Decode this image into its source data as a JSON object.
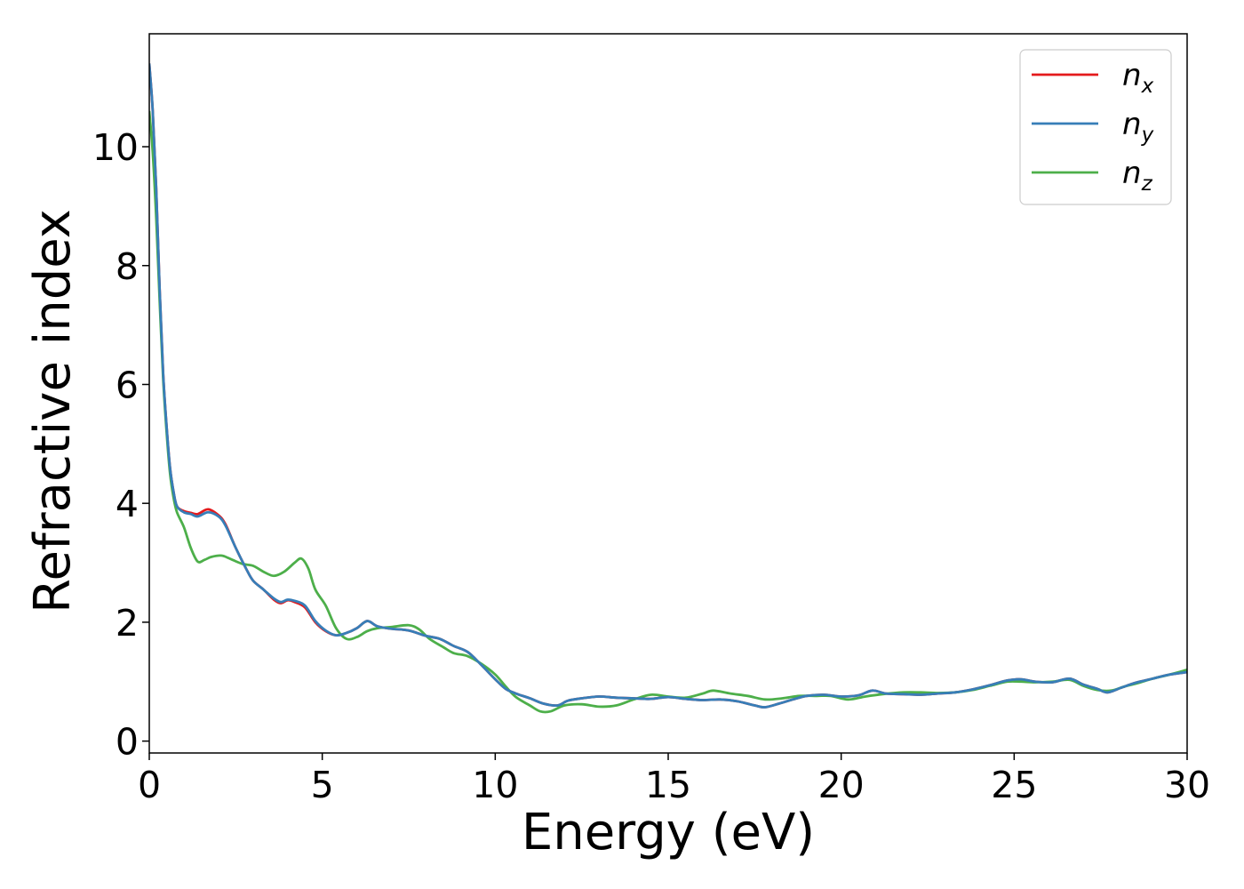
{
  "chart_data": {
    "type": "line",
    "xlabel": "Energy (eV)",
    "ylabel": "Refractive index",
    "xlim": [
      0,
      30
    ],
    "ylim": [
      -0.2,
      11.9
    ],
    "xticks": [
      0,
      5,
      10,
      15,
      20,
      25,
      30
    ],
    "yticks": [
      0,
      2,
      4,
      6,
      8,
      10
    ],
    "grid": false,
    "legend_position": "top-right",
    "series": [
      {
        "name": "n",
        "subscript": "x",
        "color": "#e41a1c",
        "points": [
          [
            0,
            11.4
          ],
          [
            0.1,
            10.6
          ],
          [
            0.2,
            9.3
          ],
          [
            0.3,
            7.6
          ],
          [
            0.4,
            6.2
          ],
          [
            0.5,
            5.3
          ],
          [
            0.6,
            4.6
          ],
          [
            0.7,
            4.2
          ],
          [
            0.8,
            3.95
          ],
          [
            1.0,
            3.87
          ],
          [
            1.2,
            3.84
          ],
          [
            1.4,
            3.82
          ],
          [
            1.7,
            3.9
          ],
          [
            2.0,
            3.8
          ],
          [
            2.2,
            3.65
          ],
          [
            2.5,
            3.25
          ],
          [
            2.8,
            2.9
          ],
          [
            3.0,
            2.7
          ],
          [
            3.3,
            2.55
          ],
          [
            3.6,
            2.38
          ],
          [
            3.8,
            2.32
          ],
          [
            4.0,
            2.37
          ],
          [
            4.2,
            2.34
          ],
          [
            4.5,
            2.25
          ],
          [
            4.8,
            2.0
          ],
          [
            5.1,
            1.85
          ],
          [
            5.4,
            1.78
          ],
          [
            5.7,
            1.82
          ],
          [
            6.0,
            1.9
          ],
          [
            6.3,
            2.02
          ],
          [
            6.6,
            1.93
          ],
          [
            7.0,
            1.89
          ],
          [
            7.5,
            1.86
          ],
          [
            8.0,
            1.77
          ],
          [
            8.4,
            1.72
          ],
          [
            8.8,
            1.6
          ],
          [
            9.2,
            1.5
          ],
          [
            9.6,
            1.28
          ],
          [
            10.0,
            1.04
          ],
          [
            10.3,
            0.88
          ],
          [
            10.6,
            0.8
          ],
          [
            11.0,
            0.72
          ],
          [
            11.4,
            0.63
          ],
          [
            11.8,
            0.6
          ],
          [
            12.1,
            0.68
          ],
          [
            12.5,
            0.72
          ],
          [
            13.0,
            0.75
          ],
          [
            13.5,
            0.73
          ],
          [
            14.0,
            0.72
          ],
          [
            14.5,
            0.71
          ],
          [
            15.0,
            0.74
          ],
          [
            15.5,
            0.71
          ],
          [
            16.0,
            0.69
          ],
          [
            16.5,
            0.7
          ],
          [
            17.0,
            0.67
          ],
          [
            17.5,
            0.6
          ],
          [
            17.8,
            0.57
          ],
          [
            18.2,
            0.63
          ],
          [
            18.6,
            0.7
          ],
          [
            19.0,
            0.76
          ],
          [
            19.5,
            0.78
          ],
          [
            20.0,
            0.75
          ],
          [
            20.5,
            0.77
          ],
          [
            20.9,
            0.85
          ],
          [
            21.3,
            0.8
          ],
          [
            21.8,
            0.79
          ],
          [
            22.3,
            0.78
          ],
          [
            22.8,
            0.8
          ],
          [
            23.3,
            0.82
          ],
          [
            23.8,
            0.87
          ],
          [
            24.3,
            0.94
          ],
          [
            24.8,
            1.02
          ],
          [
            25.2,
            1.04
          ],
          [
            25.6,
            1.0
          ],
          [
            26.1,
            0.99
          ],
          [
            26.6,
            1.05
          ],
          [
            27.0,
            0.95
          ],
          [
            27.4,
            0.88
          ],
          [
            27.7,
            0.82
          ],
          [
            28.1,
            0.9
          ],
          [
            28.5,
            0.98
          ],
          [
            29.0,
            1.05
          ],
          [
            29.5,
            1.12
          ],
          [
            30.0,
            1.16
          ]
        ]
      },
      {
        "name": "n",
        "subscript": "y",
        "color": "#377eb8",
        "points": [
          [
            0,
            11.4
          ],
          [
            0.1,
            10.6
          ],
          [
            0.2,
            9.3
          ],
          [
            0.3,
            7.6
          ],
          [
            0.4,
            6.2
          ],
          [
            0.5,
            5.3
          ],
          [
            0.6,
            4.6
          ],
          [
            0.7,
            4.2
          ],
          [
            0.8,
            3.95
          ],
          [
            1.0,
            3.85
          ],
          [
            1.2,
            3.82
          ],
          [
            1.4,
            3.78
          ],
          [
            1.7,
            3.85
          ],
          [
            2.0,
            3.78
          ],
          [
            2.2,
            3.63
          ],
          [
            2.5,
            3.25
          ],
          [
            2.8,
            2.9
          ],
          [
            3.0,
            2.7
          ],
          [
            3.3,
            2.55
          ],
          [
            3.6,
            2.4
          ],
          [
            3.8,
            2.34
          ],
          [
            4.0,
            2.38
          ],
          [
            4.2,
            2.36
          ],
          [
            4.5,
            2.28
          ],
          [
            4.8,
            2.02
          ],
          [
            5.1,
            1.86
          ],
          [
            5.4,
            1.78
          ],
          [
            5.7,
            1.82
          ],
          [
            6.0,
            1.9
          ],
          [
            6.3,
            2.02
          ],
          [
            6.6,
            1.93
          ],
          [
            7.0,
            1.89
          ],
          [
            7.5,
            1.86
          ],
          [
            8.0,
            1.77
          ],
          [
            8.4,
            1.72
          ],
          [
            8.8,
            1.6
          ],
          [
            9.2,
            1.5
          ],
          [
            9.6,
            1.28
          ],
          [
            10.0,
            1.04
          ],
          [
            10.3,
            0.88
          ],
          [
            10.6,
            0.8
          ],
          [
            11.0,
            0.72
          ],
          [
            11.4,
            0.63
          ],
          [
            11.8,
            0.6
          ],
          [
            12.1,
            0.68
          ],
          [
            12.5,
            0.72
          ],
          [
            13.0,
            0.75
          ],
          [
            13.5,
            0.73
          ],
          [
            14.0,
            0.72
          ],
          [
            14.5,
            0.71
          ],
          [
            15.0,
            0.74
          ],
          [
            15.5,
            0.71
          ],
          [
            16.0,
            0.69
          ],
          [
            16.5,
            0.7
          ],
          [
            17.0,
            0.67
          ],
          [
            17.5,
            0.6
          ],
          [
            17.8,
            0.57
          ],
          [
            18.2,
            0.63
          ],
          [
            18.6,
            0.7
          ],
          [
            19.0,
            0.76
          ],
          [
            19.5,
            0.78
          ],
          [
            20.0,
            0.75
          ],
          [
            20.5,
            0.77
          ],
          [
            20.9,
            0.85
          ],
          [
            21.3,
            0.8
          ],
          [
            21.8,
            0.79
          ],
          [
            22.3,
            0.78
          ],
          [
            22.8,
            0.8
          ],
          [
            23.3,
            0.82
          ],
          [
            23.8,
            0.87
          ],
          [
            24.3,
            0.94
          ],
          [
            24.8,
            1.02
          ],
          [
            25.2,
            1.04
          ],
          [
            25.6,
            1.0
          ],
          [
            26.1,
            0.99
          ],
          [
            26.6,
            1.05
          ],
          [
            27.0,
            0.95
          ],
          [
            27.4,
            0.88
          ],
          [
            27.7,
            0.82
          ],
          [
            28.1,
            0.9
          ],
          [
            28.5,
            0.98
          ],
          [
            29.0,
            1.05
          ],
          [
            29.5,
            1.12
          ],
          [
            30.0,
            1.16
          ]
        ]
      },
      {
        "name": "n",
        "subscript": "z",
        "color": "#4daf4a",
        "points": [
          [
            0,
            10.6
          ],
          [
            0.1,
            9.9
          ],
          [
            0.2,
            8.8
          ],
          [
            0.3,
            7.4
          ],
          [
            0.4,
            6.1
          ],
          [
            0.5,
            5.2
          ],
          [
            0.6,
            4.5
          ],
          [
            0.7,
            4.1
          ],
          [
            0.8,
            3.85
          ],
          [
            1.0,
            3.6
          ],
          [
            1.2,
            3.25
          ],
          [
            1.4,
            3.02
          ],
          [
            1.6,
            3.05
          ],
          [
            1.8,
            3.1
          ],
          [
            2.1,
            3.12
          ],
          [
            2.4,
            3.05
          ],
          [
            2.7,
            2.98
          ],
          [
            3.0,
            2.95
          ],
          [
            3.3,
            2.85
          ],
          [
            3.6,
            2.78
          ],
          [
            3.9,
            2.85
          ],
          [
            4.2,
            3.0
          ],
          [
            4.4,
            3.07
          ],
          [
            4.6,
            2.9
          ],
          [
            4.8,
            2.55
          ],
          [
            5.1,
            2.28
          ],
          [
            5.4,
            1.9
          ],
          [
            5.7,
            1.72
          ],
          [
            6.0,
            1.75
          ],
          [
            6.3,
            1.85
          ],
          [
            6.6,
            1.9
          ],
          [
            7.0,
            1.92
          ],
          [
            7.5,
            1.95
          ],
          [
            7.8,
            1.88
          ],
          [
            8.1,
            1.72
          ],
          [
            8.5,
            1.58
          ],
          [
            8.8,
            1.48
          ],
          [
            9.2,
            1.43
          ],
          [
            9.6,
            1.3
          ],
          [
            10.0,
            1.12
          ],
          [
            10.3,
            0.92
          ],
          [
            10.6,
            0.74
          ],
          [
            11.0,
            0.6
          ],
          [
            11.3,
            0.5
          ],
          [
            11.6,
            0.5
          ],
          [
            12.0,
            0.6
          ],
          [
            12.5,
            0.62
          ],
          [
            13.0,
            0.58
          ],
          [
            13.5,
            0.6
          ],
          [
            14.0,
            0.7
          ],
          [
            14.5,
            0.78
          ],
          [
            15.0,
            0.75
          ],
          [
            15.5,
            0.73
          ],
          [
            16.0,
            0.8
          ],
          [
            16.3,
            0.85
          ],
          [
            16.8,
            0.8
          ],
          [
            17.3,
            0.76
          ],
          [
            17.8,
            0.7
          ],
          [
            18.3,
            0.72
          ],
          [
            18.8,
            0.76
          ],
          [
            19.3,
            0.76
          ],
          [
            19.7,
            0.76
          ],
          [
            20.2,
            0.7
          ],
          [
            20.7,
            0.75
          ],
          [
            21.2,
            0.79
          ],
          [
            21.8,
            0.82
          ],
          [
            22.3,
            0.82
          ],
          [
            22.8,
            0.81
          ],
          [
            23.3,
            0.82
          ],
          [
            23.8,
            0.86
          ],
          [
            24.3,
            0.93
          ],
          [
            24.8,
            1.0
          ],
          [
            25.2,
            1.0
          ],
          [
            25.6,
            0.99
          ],
          [
            26.1,
            1.0
          ],
          [
            26.6,
            1.03
          ],
          [
            27.0,
            0.93
          ],
          [
            27.4,
            0.86
          ],
          [
            27.8,
            0.85
          ],
          [
            28.2,
            0.92
          ],
          [
            28.6,
            0.98
          ],
          [
            29.0,
            1.05
          ],
          [
            29.5,
            1.12
          ],
          [
            30.0,
            1.2
          ]
        ]
      }
    ]
  }
}
